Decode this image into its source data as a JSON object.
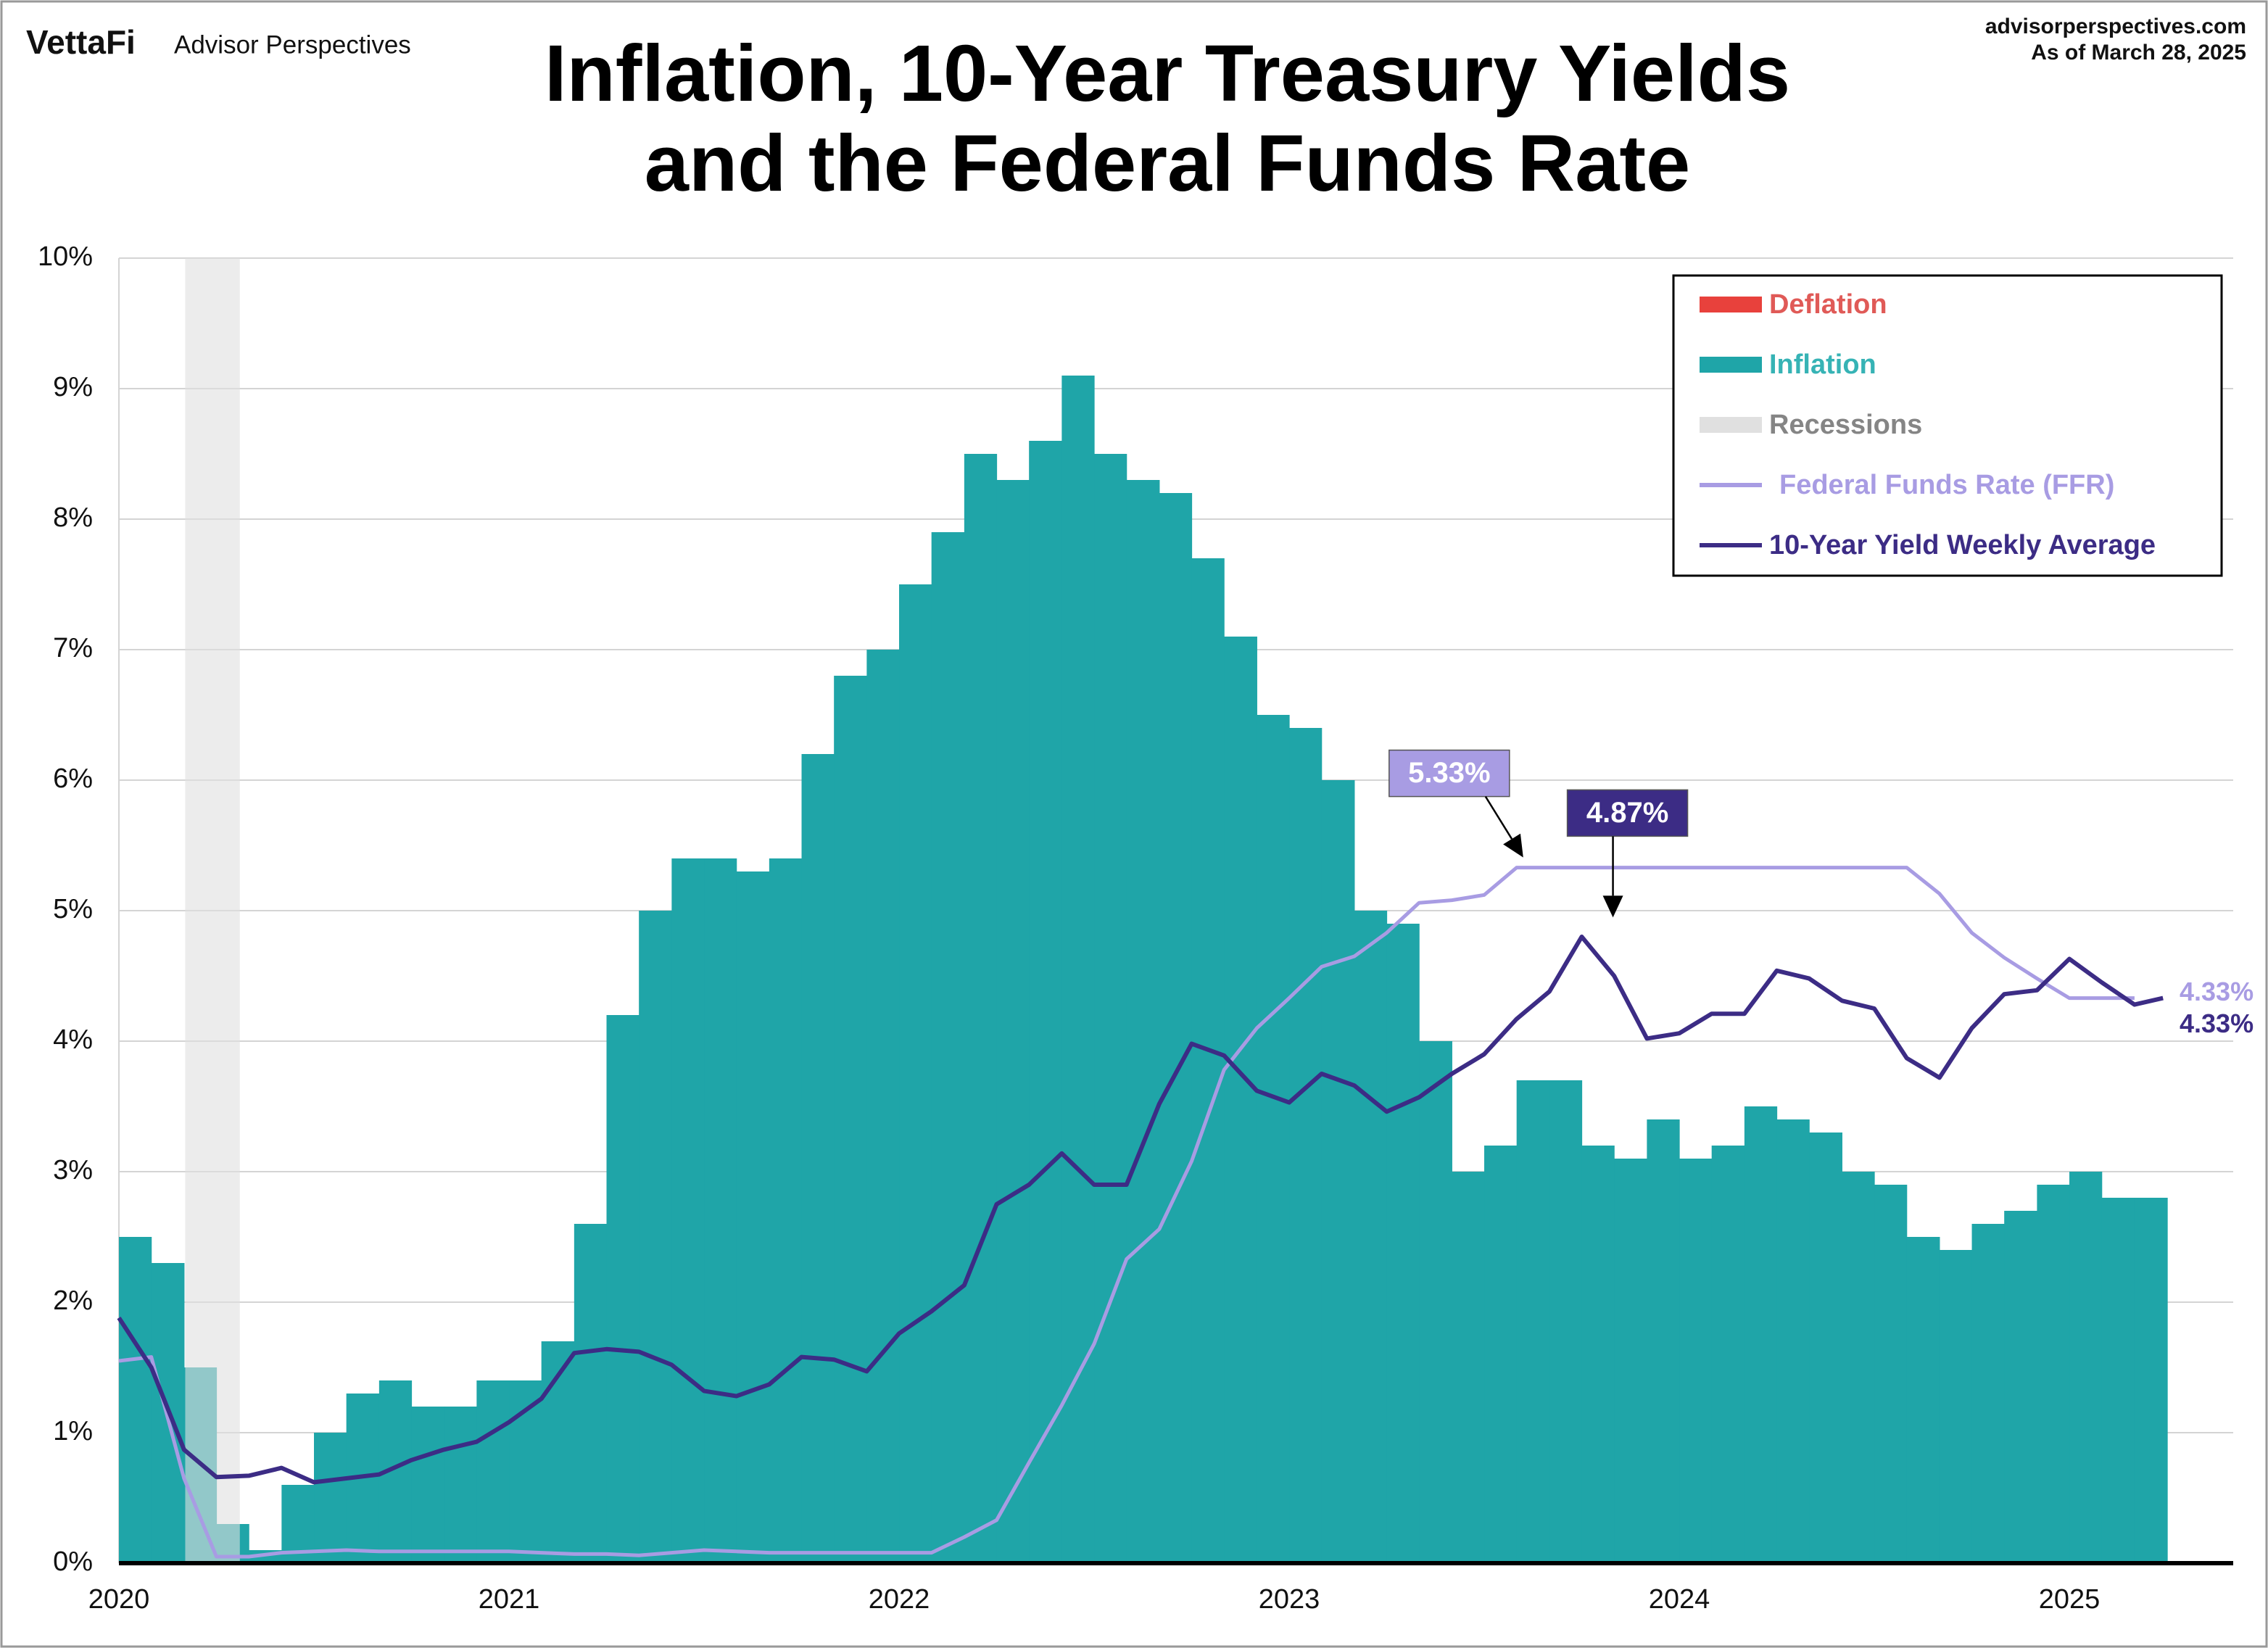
{
  "header": {
    "logo": "VettaFi",
    "brand": "Advisor Perspectives",
    "site": "advisorperspectives.com",
    "date": "As of March 28, 2025"
  },
  "chart_data": {
    "type": "line",
    "title": [
      "Inflation, 10-Year Treasury Yields",
      "and the Federal Funds Rate"
    ],
    "x": [
      2020,
      2020.083,
      2020.167,
      2020.25,
      2020.333,
      2020.417,
      2020.5,
      2020.583,
      2020.667,
      2020.75,
      2020.833,
      2020.917,
      2021,
      2021.083,
      2021.167,
      2021.25,
      2021.333,
      2021.417,
      2021.5,
      2021.583,
      2021.667,
      2021.75,
      2021.833,
      2021.917,
      2022,
      2022.083,
      2022.167,
      2022.25,
      2022.333,
      2022.417,
      2022.5,
      2022.583,
      2022.667,
      2022.75,
      2022.833,
      2022.917,
      2023,
      2023.083,
      2023.167,
      2023.25,
      2023.333,
      2023.417,
      2023.5,
      2023.583,
      2023.667,
      2023.75,
      2023.833,
      2023.917,
      2024,
      2024.083,
      2024.167,
      2024.25,
      2024.333,
      2024.417,
      2024.5,
      2024.583,
      2024.667,
      2024.75,
      2024.833,
      2024.917,
      2025,
      2025.083,
      2025.167
    ],
    "area": {
      "name": "Inflation",
      "color": "#1fa5a8",
      "negative_name": "Deflation",
      "negative_color": "#e8413c",
      "values": [
        2.5,
        2.3,
        1.5,
        0.3,
        0.1,
        0.6,
        1.0,
        1.3,
        1.4,
        1.2,
        1.2,
        1.4,
        1.4,
        1.7,
        2.6,
        4.2,
        5.0,
        5.4,
        5.4,
        5.3,
        5.4,
        6.2,
        6.8,
        7.0,
        7.5,
        7.9,
        8.5,
        8.3,
        8.6,
        9.1,
        8.5,
        8.3,
        8.2,
        7.7,
        7.1,
        6.5,
        6.4,
        6.0,
        5.0,
        4.9,
        4.0,
        3.0,
        3.2,
        3.7,
        3.7,
        3.2,
        3.1,
        3.4,
        3.1,
        3.2,
        3.5,
        3.4,
        3.3,
        3.0,
        2.9,
        2.5,
        2.4,
        2.6,
        2.7,
        2.9,
        3.0,
        2.8,
        2.8
      ]
    },
    "recessions": {
      "name": "Recessions",
      "color": "#e0e0e0",
      "ranges": [
        [
          2020.17,
          2020.31
        ]
      ]
    },
    "series": [
      {
        "name": "Federal Funds Rate (FFR)",
        "color": "#a89ce3",
        "values": [
          1.55,
          1.58,
          0.65,
          0.05,
          0.05,
          0.08,
          0.09,
          0.1,
          0.09,
          0.09,
          0.09,
          0.09,
          0.09,
          0.08,
          0.07,
          0.07,
          0.06,
          0.08,
          0.1,
          0.09,
          0.08,
          0.08,
          0.08,
          0.08,
          0.08,
          0.08,
          0.2,
          0.33,
          0.77,
          1.21,
          1.68,
          2.33,
          2.56,
          3.08,
          3.78,
          4.1,
          4.33,
          4.57,
          4.65,
          4.83,
          5.06,
          5.08,
          5.12,
          5.33,
          5.33,
          5.33,
          5.33,
          5.33,
          5.33,
          5.33,
          5.33,
          5.33,
          5.33,
          5.33,
          5.33,
          5.33,
          5.13,
          4.83,
          4.64,
          4.48,
          4.33,
          4.33,
          4.33
        ]
      },
      {
        "name": "10-Year Yield Weekly Average",
        "color": "#3c2c85",
        "x": [
          2020,
          2020.083,
          2020.167,
          2020.25,
          2020.333,
          2020.417,
          2020.5,
          2020.583,
          2020.667,
          2020.75,
          2020.833,
          2020.917,
          2021,
          2021.083,
          2021.167,
          2021.25,
          2021.333,
          2021.417,
          2021.5,
          2021.583,
          2021.667,
          2021.75,
          2021.833,
          2021.917,
          2022,
          2022.083,
          2022.167,
          2022.25,
          2022.333,
          2022.417,
          2022.5,
          2022.583,
          2022.667,
          2022.75,
          2022.833,
          2022.917,
          2023,
          2023.083,
          2023.167,
          2023.25,
          2023.333,
          2023.417,
          2023.5,
          2023.583,
          2023.667,
          2023.75,
          2023.833,
          2023.917,
          2024,
          2024.083,
          2024.167,
          2024.25,
          2024.333,
          2024.417,
          2024.5,
          2024.583,
          2024.667,
          2024.75,
          2024.833,
          2024.917,
          2025,
          2025.083,
          2025.167,
          2025.24
        ],
        "values": [
          1.88,
          1.5,
          0.87,
          0.66,
          0.67,
          0.73,
          0.62,
          0.65,
          0.68,
          0.79,
          0.87,
          0.93,
          1.08,
          1.26,
          1.61,
          1.64,
          1.62,
          1.52,
          1.32,
          1.28,
          1.37,
          1.58,
          1.56,
          1.47,
          1.76,
          1.93,
          2.13,
          2.75,
          2.9,
          3.14,
          2.9,
          2.9,
          3.52,
          3.98,
          3.89,
          3.62,
          3.53,
          3.75,
          3.66,
          3.46,
          3.57,
          3.75,
          3.9,
          4.17,
          4.38,
          4.8,
          4.5,
          4.02,
          4.06,
          4.21,
          4.21,
          4.54,
          4.48,
          4.31,
          4.25,
          3.87,
          3.72,
          4.1,
          4.36,
          4.39,
          4.63,
          4.45,
          4.28,
          4.33
        ]
      }
    ],
    "annotations": [
      {
        "label": "5.33%",
        "value": 5.33,
        "x": 2023.6,
        "color": "#a89ce3"
      },
      {
        "label": "4.87%",
        "value": 4.87,
        "x": 2023.83,
        "color": "#3c2c85"
      }
    ],
    "end_labels": [
      {
        "label": "4.33%",
        "value": 4.33,
        "color": "#a89ce3"
      },
      {
        "label": "4.33%",
        "value": 4.33,
        "color": "#3c2c85"
      }
    ],
    "xlim": [
      2020,
      2025.42
    ],
    "xticks": [
      2020,
      2021,
      2022,
      2023,
      2024,
      2025
    ],
    "ylim": [
      0,
      10
    ],
    "yticks": [
      {
        "value": 0,
        "label": "0%"
      },
      {
        "value": 1,
        "label": "1%"
      },
      {
        "value": 2,
        "label": "2%"
      },
      {
        "value": 3,
        "label": "3%"
      },
      {
        "value": 4,
        "label": "4%"
      },
      {
        "value": 5,
        "label": "5%"
      },
      {
        "value": 6,
        "label": "6%"
      },
      {
        "value": 7,
        "label": "7%"
      },
      {
        "value": 8,
        "label": "8%"
      },
      {
        "value": 9,
        "label": "9%"
      },
      {
        "value": 10,
        "label": "10%"
      }
    ],
    "grid": true
  }
}
